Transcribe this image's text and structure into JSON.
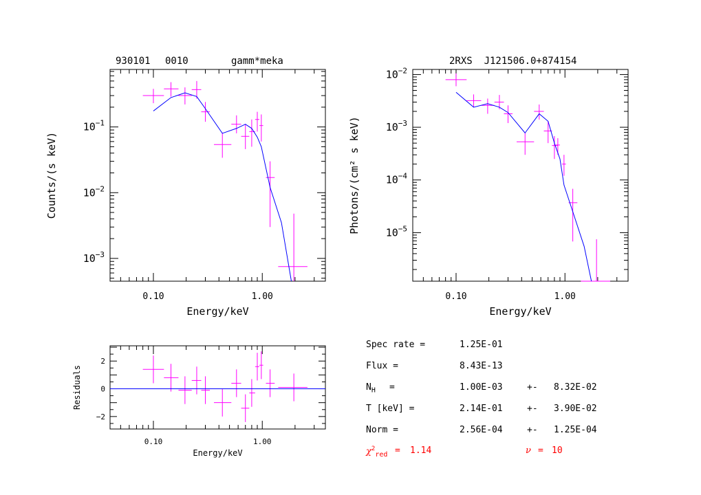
{
  "header": {
    "obs_id": "930101",
    "obs_num": "0010",
    "model": "gamm*meka",
    "source": "2RXS  J121506.0+874154"
  },
  "chart_data": [
    {
      "id": "counts",
      "type": "scatter",
      "xlabel": "Energy/keV",
      "ylabel": "Counts/(s keV)",
      "xscale": "log",
      "yscale": "log",
      "xlim": [
        0.04,
        3.8
      ],
      "ylim": [
        0.00045,
        0.75
      ],
      "xtick_labels": [
        {
          "v": 0.1,
          "t": "0.10"
        },
        {
          "v": 1.0,
          "t": "1.00"
        }
      ],
      "ytick_labels": [
        {
          "v": 0.1,
          "base": "10",
          "exp": "−1"
        },
        {
          "v": 0.01,
          "base": "10",
          "exp": "−2"
        },
        {
          "v": 0.001,
          "base": "10",
          "exp": "−3"
        }
      ],
      "series": [
        {
          "kind": "errorbar",
          "color": "#ff00ff",
          "points": [
            {
              "x": 0.1,
              "xl": 0.08,
              "xh": 0.125,
              "y": 0.3,
              "yl": 0.23,
              "yh": 0.38
            },
            {
              "x": 0.145,
              "xl": 0.125,
              "xh": 0.17,
              "y": 0.38,
              "yl": 0.29,
              "yh": 0.48
            },
            {
              "x": 0.195,
              "xl": 0.17,
              "xh": 0.225,
              "y": 0.3,
              "yl": 0.22,
              "yh": 0.4
            },
            {
              "x": 0.25,
              "xl": 0.225,
              "xh": 0.275,
              "y": 0.37,
              "yl": 0.27,
              "yh": 0.5
            },
            {
              "x": 0.3,
              "xl": 0.275,
              "xh": 0.33,
              "y": 0.17,
              "yl": 0.12,
              "yh": 0.24
            },
            {
              "x": 0.43,
              "xl": 0.36,
              "xh": 0.52,
              "y": 0.054,
              "yl": 0.034,
              "yh": 0.082
            },
            {
              "x": 0.58,
              "xl": 0.52,
              "xh": 0.64,
              "y": 0.11,
              "yl": 0.08,
              "yh": 0.15
            },
            {
              "x": 0.7,
              "xl": 0.64,
              "xh": 0.76,
              "y": 0.072,
              "yl": 0.046,
              "yh": 0.11
            },
            {
              "x": 0.8,
              "xl": 0.76,
              "xh": 0.86,
              "y": 0.085,
              "yl": 0.05,
              "yh": 0.13
            },
            {
              "x": 0.9,
              "xl": 0.86,
              "xh": 0.94,
              "y": 0.13,
              "yl": 0.085,
              "yh": 0.17
            },
            {
              "x": 0.98,
              "xl": 0.94,
              "xh": 1.02,
              "y": 0.105,
              "yl": 0.06,
              "yh": 0.155
            },
            {
              "x": 1.18,
              "xl": 1.08,
              "xh": 1.3,
              "y": 0.017,
              "yl": 0.003,
              "yh": 0.03
            },
            {
              "x": 1.95,
              "xl": 1.4,
              "xh": 2.6,
              "y": 0.00075,
              "yl": 0.00045,
              "yh": 0.0048
            }
          ]
        },
        {
          "kind": "line",
          "color": "#0000ff",
          "points": [
            {
              "x": 0.1,
              "y": 0.175
            },
            {
              "x": 0.145,
              "y": 0.28
            },
            {
              "x": 0.195,
              "y": 0.33
            },
            {
              "x": 0.25,
              "y": 0.29
            },
            {
              "x": 0.3,
              "y": 0.19
            },
            {
              "x": 0.43,
              "y": 0.08
            },
            {
              "x": 0.58,
              "y": 0.095
            },
            {
              "x": 0.7,
              "y": 0.11
            },
            {
              "x": 0.8,
              "y": 0.095
            },
            {
              "x": 0.9,
              "y": 0.07
            },
            {
              "x": 0.98,
              "y": 0.05
            },
            {
              "x": 1.18,
              "y": 0.012
            },
            {
              "x": 1.5,
              "y": 0.0035
            },
            {
              "x": 1.85,
              "y": 0.00045
            }
          ]
        }
      ]
    },
    {
      "id": "photons",
      "type": "scatter",
      "xlabel": "Energy/keV",
      "ylabel": "Photons/(cm² s keV)",
      "xscale": "log",
      "yscale": "log",
      "xlim": [
        0.04,
        3.8
      ],
      "ylim": [
        1.2e-06,
        0.0125
      ],
      "xtick_labels": [
        {
          "v": 0.1,
          "t": "0.10"
        },
        {
          "v": 1.0,
          "t": "1.00"
        }
      ],
      "ytick_labels": [
        {
          "v": 0.01,
          "base": "10",
          "exp": "−2"
        },
        {
          "v": 0.001,
          "base": "10",
          "exp": "−3"
        },
        {
          "v": 0.0001,
          "base": "10",
          "exp": "−4"
        },
        {
          "v": 1e-05,
          "base": "10",
          "exp": "−5"
        }
      ],
      "series": [
        {
          "kind": "errorbar",
          "color": "#ff00ff",
          "points": [
            {
              "x": 0.1,
              "xl": 0.08,
              "xh": 0.125,
              "y": 0.008,
              "yl": 0.006,
              "yh": 0.0105
            },
            {
              "x": 0.145,
              "xl": 0.125,
              "xh": 0.17,
              "y": 0.0032,
              "yl": 0.0024,
              "yh": 0.0042
            },
            {
              "x": 0.195,
              "xl": 0.17,
              "xh": 0.225,
              "y": 0.0026,
              "yl": 0.0018,
              "yh": 0.0035
            },
            {
              "x": 0.25,
              "xl": 0.225,
              "xh": 0.275,
              "y": 0.003,
              "yl": 0.0022,
              "yh": 0.0041
            },
            {
              "x": 0.3,
              "xl": 0.275,
              "xh": 0.33,
              "y": 0.0018,
              "yl": 0.0012,
              "yh": 0.0026
            },
            {
              "x": 0.43,
              "xl": 0.36,
              "xh": 0.52,
              "y": 0.00053,
              "yl": 0.0003,
              "yh": 0.0008
            },
            {
              "x": 0.58,
              "xl": 0.52,
              "xh": 0.64,
              "y": 0.002,
              "yl": 0.0014,
              "yh": 0.0027
            },
            {
              "x": 0.7,
              "xl": 0.64,
              "xh": 0.76,
              "y": 0.00085,
              "yl": 0.0005,
              "yh": 0.0013
            },
            {
              "x": 0.8,
              "xl": 0.76,
              "xh": 0.86,
              "y": 0.00045,
              "yl": 0.00025,
              "yh": 0.00068
            },
            {
              "x": 0.86,
              "xl": 0.82,
              "xh": 0.9,
              "y": 0.00046,
              "yl": 0.0003,
              "yh": 0.00062
            },
            {
              "x": 0.98,
              "xl": 0.94,
              "xh": 1.02,
              "y": 0.0002,
              "yl": 0.00012,
              "yh": 0.0003
            },
            {
              "x": 1.18,
              "xl": 1.08,
              "xh": 1.3,
              "y": 3.7e-05,
              "yl": 6.8e-06,
              "yh": 6.8e-05
            },
            {
              "x": 1.95,
              "xl": 1.4,
              "xh": 2.6,
              "y": 9e-07,
              "yl": 9e-07,
              "yh": 7.5e-06
            }
          ]
        },
        {
          "kind": "line",
          "color": "#0000ff",
          "points": [
            {
              "x": 0.1,
              "y": 0.0046
            },
            {
              "x": 0.145,
              "y": 0.0024
            },
            {
              "x": 0.195,
              "y": 0.0028
            },
            {
              "x": 0.25,
              "y": 0.0024
            },
            {
              "x": 0.3,
              "y": 0.0019
            },
            {
              "x": 0.43,
              "y": 0.00078
            },
            {
              "x": 0.58,
              "y": 0.0018
            },
            {
              "x": 0.7,
              "y": 0.0013
            },
            {
              "x": 0.8,
              "y": 0.0005
            },
            {
              "x": 0.9,
              "y": 0.00025
            },
            {
              "x": 0.98,
              "y": 8e-05
            },
            {
              "x": 1.18,
              "y": 2.5e-05
            },
            {
              "x": 1.5,
              "y": 5.5e-06
            },
            {
              "x": 1.75,
              "y": 1.2e-06
            }
          ]
        }
      ]
    },
    {
      "id": "residuals",
      "type": "scatter",
      "xlabel": "Energy/keV",
      "ylabel": "Residuals",
      "xscale": "log",
      "yscale": "linear",
      "xlim": [
        0.04,
        3.8
      ],
      "ylim": [
        -2.9,
        3.1
      ],
      "xtick_labels": [
        {
          "v": 0.1,
          "t": "0.10"
        },
        {
          "v": 1.0,
          "t": "1.00"
        }
      ],
      "ytick_labels": [
        {
          "v": 2,
          "t": "2"
        },
        {
          "v": 0,
          "t": "0"
        },
        {
          "v": -2,
          "t": "−2"
        }
      ],
      "series": [
        {
          "kind": "errorbar",
          "color": "#ff00ff",
          "points": [
            {
              "x": 0.1,
              "xl": 0.08,
              "xh": 0.125,
              "y": 1.4,
              "yl": 0.4,
              "yh": 2.4
            },
            {
              "x": 0.145,
              "xl": 0.125,
              "xh": 0.17,
              "y": 0.8,
              "yl": -0.2,
              "yh": 1.8
            },
            {
              "x": 0.195,
              "xl": 0.17,
              "xh": 0.225,
              "y": -0.1,
              "yl": -1.1,
              "yh": 0.9
            },
            {
              "x": 0.25,
              "xl": 0.225,
              "xh": 0.275,
              "y": 0.6,
              "yl": -0.4,
              "yh": 1.6
            },
            {
              "x": 0.3,
              "xl": 0.275,
              "xh": 0.33,
              "y": -0.1,
              "yl": -1.1,
              "yh": 0.9
            },
            {
              "x": 0.43,
              "xl": 0.36,
              "xh": 0.52,
              "y": -1.0,
              "yl": -2.0,
              "yh": 0.0
            },
            {
              "x": 0.58,
              "xl": 0.52,
              "xh": 0.64,
              "y": 0.4,
              "yl": -0.6,
              "yh": 1.4
            },
            {
              "x": 0.7,
              "xl": 0.64,
              "xh": 0.76,
              "y": -1.4,
              "yl": -2.4,
              "yh": -0.4
            },
            {
              "x": 0.8,
              "xl": 0.76,
              "xh": 0.86,
              "y": -0.3,
              "yl": -1.3,
              "yh": 0.7
            },
            {
              "x": 0.9,
              "xl": 0.86,
              "xh": 0.94,
              "y": 1.6,
              "yl": 0.6,
              "yh": 2.6
            },
            {
              "x": 0.98,
              "xl": 0.94,
              "xh": 1.02,
              "y": 1.7,
              "yl": 0.7,
              "yh": 2.7
            },
            {
              "x": 1.18,
              "xl": 1.08,
              "xh": 1.3,
              "y": 0.4,
              "yl": -0.6,
              "yh": 1.4
            },
            {
              "x": 1.95,
              "xl": 1.4,
              "xh": 2.6,
              "y": 0.1,
              "yl": -0.9,
              "yh": 1.1
            }
          ]
        },
        {
          "kind": "line",
          "color": "#0000ff",
          "points": [
            {
              "x": 0.04,
              "y": 0
            },
            {
              "x": 3.8,
              "y": 0
            }
          ]
        }
      ]
    }
  ],
  "fit_results": {
    "spec_rate_label": "Spec rate =",
    "spec_rate_value": "1.25E-01",
    "flux_label": "Flux =",
    "flux_value": "8.43E-13",
    "nh_label_main": "N",
    "nh_label_sub": "H",
    "nh_eq": "=",
    "nh_value": "1.00E-03",
    "nh_pm": "+-",
    "nh_err": "8.32E-02",
    "t_label": "T [keV] =",
    "t_value": "2.14E-01",
    "t_pm": "+-",
    "t_err": "3.90E-02",
    "norm_label": "Norm =",
    "norm_value": "2.56E-04",
    "norm_pm": "+-",
    "norm_err": "1.25E-04",
    "chi_main": "χ",
    "chi_sup": "2",
    "chi_sub": "red",
    "chi_eq": "=",
    "chi_value": "1.14",
    "nu_label": "ν",
    "nu_eq": "=",
    "nu_value": "10",
    "highlight_color": "#ff0000"
  }
}
